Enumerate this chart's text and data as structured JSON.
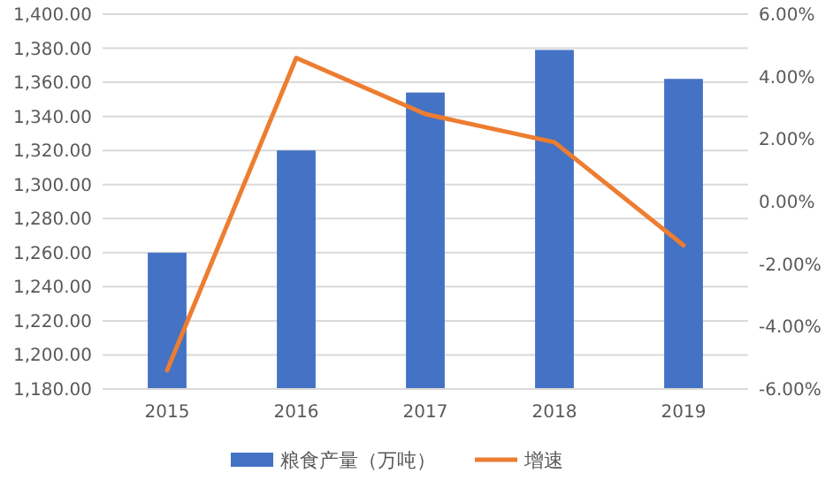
{
  "chart_data": {
    "type": "bar",
    "categories": [
      "2015",
      "2016",
      "2017",
      "2018",
      "2019"
    ],
    "series": [
      {
        "name": "粮食产量（万吨）",
        "color": "#4472c4",
        "values": [
          1260,
          1320,
          1354,
          1379,
          1362
        ]
      },
      {
        "name": "增速",
        "type": "line",
        "axis": "y2",
        "color": "#ed7d31",
        "values": [
          -5.4,
          4.6,
          2.8,
          1.9,
          -1.4
        ]
      }
    ],
    "ylim": [
      1180,
      1400
    ],
    "yticks": [
      {
        "value": 1180,
        "label": "1,180.00"
      },
      {
        "value": 1200,
        "label": "1,200.00"
      },
      {
        "value": 1220,
        "label": "1,220.00"
      },
      {
        "value": 1240,
        "label": "1,240.00"
      },
      {
        "value": 1260,
        "label": "1,260.00"
      },
      {
        "value": 1280,
        "label": "1,280.00"
      },
      {
        "value": 1300,
        "label": "1,300.00"
      },
      {
        "value": 1320,
        "label": "1,320.00"
      },
      {
        "value": 1340,
        "label": "1,340.00"
      },
      {
        "value": 1360,
        "label": "1,360.00"
      },
      {
        "value": 1380,
        "label": "1,380.00"
      },
      {
        "value": 1400,
        "label": "1,400.00"
      }
    ],
    "y2lim": [
      -6,
      6
    ],
    "y2ticks": [
      {
        "value": -6,
        "label": "-6.00%"
      },
      {
        "value": -4,
        "label": "-4.00%"
      },
      {
        "value": -2,
        "label": "-2.00%"
      },
      {
        "value": 0,
        "label": "0.00%"
      },
      {
        "value": 2,
        "label": "2.00%"
      },
      {
        "value": 4,
        "label": "4.00%"
      },
      {
        "value": 6,
        "label": "6.00%"
      }
    ],
    "grid": "y",
    "legend": "bottom",
    "marker": "none"
  }
}
